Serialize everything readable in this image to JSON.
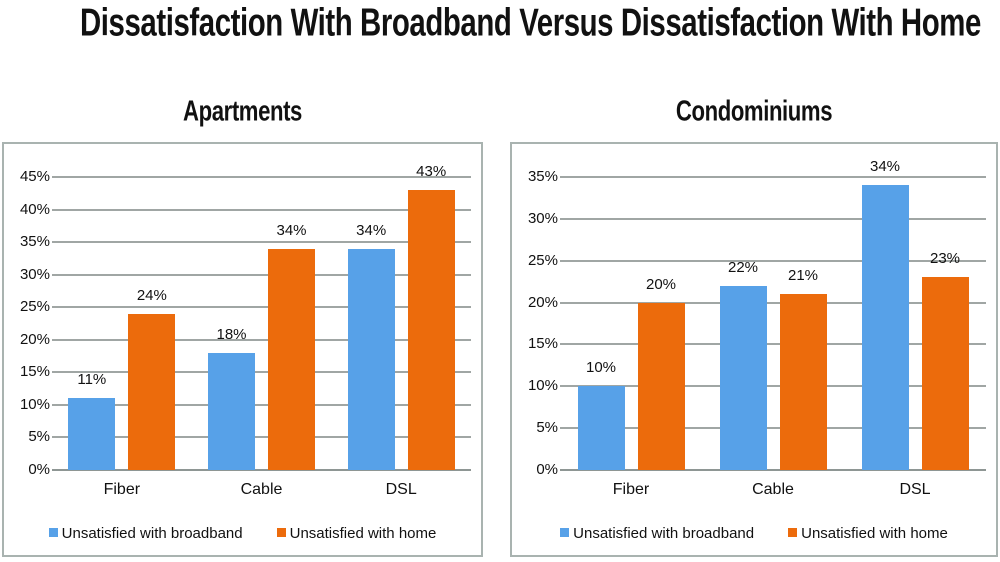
{
  "page": {
    "title": "Dissatisfaction With Broadband Versus Dissatisfaction With Home"
  },
  "colors": {
    "broadband": "#57a1e8",
    "home": "#ec6b0c",
    "gridline": "#a0a6a4",
    "axis_line": "#8e9694",
    "panel_border": "#a9b3b0",
    "text": "#111111"
  },
  "chart_data": [
    {
      "type": "bar",
      "title": "Apartments",
      "categories": [
        "Fiber",
        "Cable",
        "DSL"
      ],
      "series": [
        {
          "name": "Unsatisfied with broadband",
          "color_key": "broadband",
          "values": [
            11,
            18,
            34
          ]
        },
        {
          "name": "Unsatisfied with home",
          "color_key": "home",
          "values": [
            24,
            34,
            43
          ]
        }
      ],
      "value_suffix": "%",
      "axis": {
        "min": 0,
        "max": 45,
        "step": 5,
        "tick_suffix": "%"
      },
      "grid": true,
      "legend_position": "bottom"
    },
    {
      "type": "bar",
      "title": "Condominiums",
      "categories": [
        "Fiber",
        "Cable",
        "DSL"
      ],
      "series": [
        {
          "name": "Unsatisfied with broadband",
          "color_key": "broadband",
          "values": [
            10,
            22,
            34
          ]
        },
        {
          "name": "Unsatisfied with home",
          "color_key": "home",
          "values": [
            20,
            21,
            23
          ]
        }
      ],
      "value_suffix": "%",
      "axis": {
        "min": 0,
        "max": 35,
        "step": 5,
        "tick_suffix": "%"
      },
      "grid": true,
      "legend_position": "bottom"
    }
  ]
}
